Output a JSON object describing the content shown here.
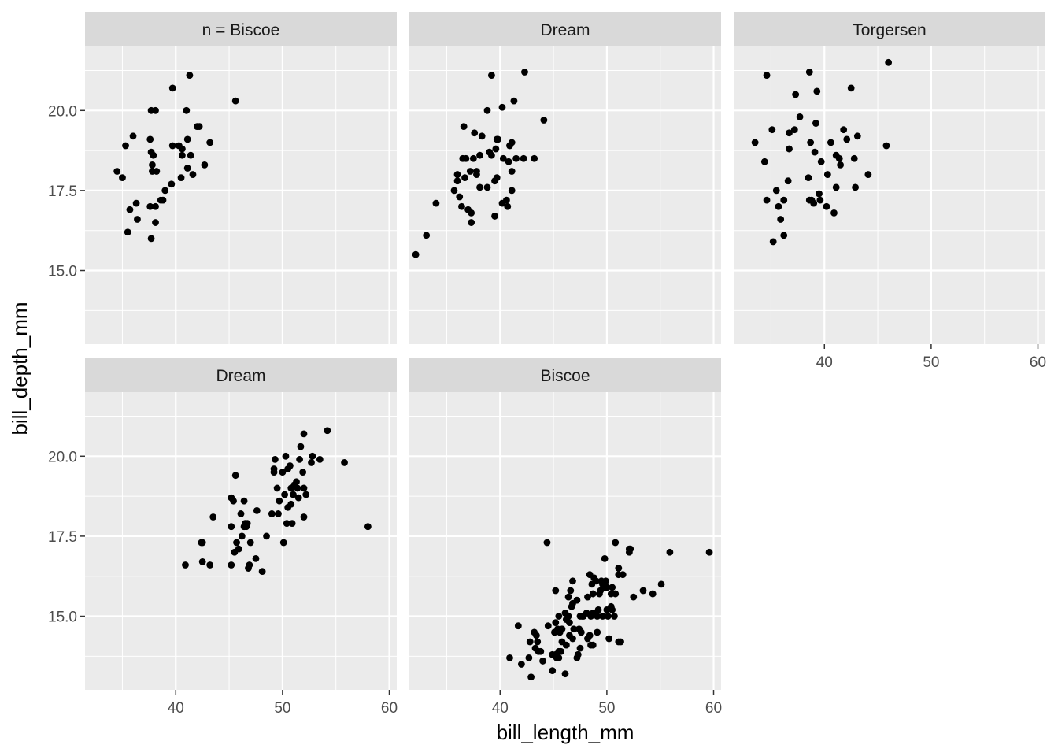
{
  "chart_data": {
    "type": "scatter",
    "facet_layout": "wrap",
    "xlabel": "bill_length_mm",
    "ylabel": "bill_depth_mm",
    "xlim": [
      31.5,
      60.7
    ],
    "ylim": [
      12.7,
      22.0
    ],
    "x_ticks": [
      40,
      50,
      60
    ],
    "x_tick_labels": [
      "40",
      "50",
      "60"
    ],
    "y_ticks": [
      15.0,
      17.5,
      20.0
    ],
    "y_tick_labels": [
      "15.0",
      "17.5",
      "20.0"
    ],
    "grid": true,
    "colors": {
      "panel": "#ebebeb",
      "strip": "#d9d9d9",
      "grid": "#ffffff",
      "point": "#000000"
    },
    "panels": [
      {
        "strip": "n = Biscoe",
        "points": [
          [
            34.5,
            18.1
          ],
          [
            35.0,
            17.9
          ],
          [
            35.3,
            18.9
          ],
          [
            35.5,
            16.2
          ],
          [
            35.7,
            16.9
          ],
          [
            36.0,
            19.2
          ],
          [
            36.3,
            17.1
          ],
          [
            36.4,
            16.6
          ],
          [
            37.6,
            19.1
          ],
          [
            37.7,
            16.0
          ],
          [
            37.7,
            18.7
          ],
          [
            37.6,
            17.0
          ],
          [
            37.7,
            20.0
          ],
          [
            37.8,
            18.1
          ],
          [
            37.8,
            18.3
          ],
          [
            37.9,
            18.6
          ],
          [
            38.1,
            17.0
          ],
          [
            38.1,
            20.0
          ],
          [
            38.2,
            18.1
          ],
          [
            38.1,
            16.5
          ],
          [
            38.6,
            17.2
          ],
          [
            38.8,
            17.2
          ],
          [
            39.0,
            17.5
          ],
          [
            39.6,
            17.7
          ],
          [
            39.7,
            18.9
          ],
          [
            39.7,
            20.7
          ],
          [
            40.3,
            18.9
          ],
          [
            40.5,
            17.9
          ],
          [
            40.6,
            18.6
          ],
          [
            40.6,
            18.8
          ],
          [
            41.0,
            20.0
          ],
          [
            41.1,
            18.2
          ],
          [
            41.1,
            19.1
          ],
          [
            41.3,
            21.1
          ],
          [
            41.4,
            18.6
          ],
          [
            41.6,
            18.0
          ],
          [
            42.0,
            19.5
          ],
          [
            42.2,
            19.5
          ],
          [
            42.7,
            18.3
          ],
          [
            43.2,
            19.0
          ],
          [
            45.6,
            20.3
          ]
        ]
      },
      {
        "strip": "Dream",
        "points": [
          [
            32.1,
            15.5
          ],
          [
            33.1,
            16.1
          ],
          [
            34.0,
            17.1
          ],
          [
            35.7,
            17.5
          ],
          [
            36.0,
            18.0
          ],
          [
            36.2,
            17.3
          ],
          [
            36.4,
            17.0
          ],
          [
            36.5,
            18.5
          ],
          [
            36.6,
            19.5
          ],
          [
            36.0,
            17.8
          ],
          [
            36.7,
            17.9
          ],
          [
            36.8,
            18.5
          ],
          [
            37.0,
            16.9
          ],
          [
            37.2,
            18.1
          ],
          [
            37.3,
            16.8
          ],
          [
            37.3,
            16.5
          ],
          [
            37.5,
            18.5
          ],
          [
            37.6,
            19.3
          ],
          [
            37.8,
            18.1
          ],
          [
            37.8,
            18.0
          ],
          [
            38.1,
            17.6
          ],
          [
            38.3,
            19.2
          ],
          [
            38.1,
            18.6
          ],
          [
            38.8,
            20.0
          ],
          [
            38.8,
            17.6
          ],
          [
            39.0,
            18.7
          ],
          [
            39.2,
            21.1
          ],
          [
            39.2,
            18.6
          ],
          [
            39.5,
            17.8
          ],
          [
            39.5,
            16.7
          ],
          [
            39.6,
            18.8
          ],
          [
            39.7,
            17.9
          ],
          [
            39.7,
            19.1
          ],
          [
            39.8,
            19.1
          ],
          [
            40.2,
            20.1
          ],
          [
            40.2,
            17.1
          ],
          [
            40.3,
            18.5
          ],
          [
            40.6,
            17.2
          ],
          [
            40.7,
            17.0
          ],
          [
            40.8,
            18.4
          ],
          [
            40.9,
            18.9
          ],
          [
            41.1,
            17.5
          ],
          [
            41.1,
            18.1
          ],
          [
            41.1,
            19.0
          ],
          [
            41.5,
            18.5
          ],
          [
            42.2,
            18.5
          ],
          [
            41.3,
            20.3
          ],
          [
            42.3,
            21.2
          ],
          [
            43.2,
            18.5
          ],
          [
            44.1,
            19.7
          ]
        ]
      },
      {
        "strip": "Torgersen",
        "points": [
          [
            33.5,
            19.0
          ],
          [
            34.4,
            18.4
          ],
          [
            34.6,
            21.1
          ],
          [
            34.6,
            17.2
          ],
          [
            35.1,
            19.4
          ],
          [
            35.2,
            15.9
          ],
          [
            35.5,
            17.5
          ],
          [
            35.7,
            17.0
          ],
          [
            35.9,
            16.6
          ],
          [
            36.2,
            17.2
          ],
          [
            36.2,
            16.1
          ],
          [
            36.6,
            17.8
          ],
          [
            36.7,
            19.3
          ],
          [
            36.7,
            18.8
          ],
          [
            37.2,
            19.4
          ],
          [
            37.3,
            20.5
          ],
          [
            37.7,
            19.8
          ],
          [
            38.5,
            17.9
          ],
          [
            38.6,
            17.2
          ],
          [
            38.6,
            21.2
          ],
          [
            38.7,
            19.0
          ],
          [
            38.8,
            17.2
          ],
          [
            39.0,
            17.1
          ],
          [
            39.1,
            18.7
          ],
          [
            39.2,
            19.6
          ],
          [
            39.3,
            20.6
          ],
          [
            39.5,
            17.4
          ],
          [
            39.6,
            17.2
          ],
          [
            39.7,
            18.4
          ],
          [
            40.2,
            17.0
          ],
          [
            40.3,
            18.0
          ],
          [
            40.6,
            19.0
          ],
          [
            40.9,
            16.8
          ],
          [
            41.1,
            17.6
          ],
          [
            41.1,
            18.6
          ],
          [
            41.4,
            18.5
          ],
          [
            41.5,
            18.3
          ],
          [
            41.8,
            19.4
          ],
          [
            42.1,
            19.1
          ],
          [
            42.5,
            20.7
          ],
          [
            42.8,
            18.5
          ],
          [
            42.9,
            17.6
          ],
          [
            43.1,
            19.2
          ],
          [
            44.1,
            18.0
          ],
          [
            45.8,
            18.9
          ],
          [
            46.0,
            21.5
          ]
        ]
      },
      {
        "strip": "Dream",
        "points": [
          [
            40.9,
            16.6
          ],
          [
            42.4,
            17.3
          ],
          [
            42.5,
            17.3
          ],
          [
            42.5,
            16.7
          ],
          [
            43.2,
            16.6
          ],
          [
            43.5,
            18.1
          ],
          [
            45.2,
            17.8
          ],
          [
            45.2,
            16.6
          ],
          [
            45.2,
            18.7
          ],
          [
            45.4,
            18.6
          ],
          [
            45.5,
            17.0
          ],
          [
            45.6,
            19.4
          ],
          [
            45.7,
            17.3
          ],
          [
            45.9,
            17.1
          ],
          [
            46.1,
            18.2
          ],
          [
            46.2,
            17.5
          ],
          [
            46.4,
            17.8
          ],
          [
            46.4,
            18.6
          ],
          [
            46.5,
            17.9
          ],
          [
            46.6,
            17.8
          ],
          [
            46.7,
            17.9
          ],
          [
            46.8,
            16.5
          ],
          [
            46.9,
            16.6
          ],
          [
            47.0,
            17.3
          ],
          [
            47.5,
            16.8
          ],
          [
            47.6,
            18.3
          ],
          [
            48.1,
            16.4
          ],
          [
            48.5,
            17.5
          ],
          [
            49.0,
            18.2
          ],
          [
            49.2,
            19.6
          ],
          [
            49.3,
            19.9
          ],
          [
            49.2,
            19.5
          ],
          [
            49.5,
            19.0
          ],
          [
            49.6,
            18.2
          ],
          [
            49.7,
            18.6
          ],
          [
            50.0,
            19.5
          ],
          [
            50.1,
            17.3
          ],
          [
            50.2,
            18.8
          ],
          [
            50.3,
            20.0
          ],
          [
            50.4,
            17.9
          ],
          [
            50.5,
            19.6
          ],
          [
            50.5,
            18.4
          ],
          [
            50.7,
            19.7
          ],
          [
            50.8,
            18.5
          ],
          [
            50.8,
            19.0
          ],
          [
            50.9,
            17.9
          ],
          [
            51.0,
            18.8
          ],
          [
            51.1,
            19.1
          ],
          [
            51.3,
            19.2
          ],
          [
            51.4,
            19.0
          ],
          [
            51.5,
            18.7
          ],
          [
            51.6,
            19.9
          ],
          [
            51.7,
            20.3
          ],
          [
            51.9,
            19.5
          ],
          [
            52.0,
            18.1
          ],
          [
            52.0,
            19.0
          ],
          [
            52.0,
            20.7
          ],
          [
            52.2,
            18.8
          ],
          [
            52.7,
            19.8
          ],
          [
            52.8,
            20.0
          ],
          [
            53.5,
            19.9
          ],
          [
            54.2,
            20.8
          ],
          [
            55.8,
            19.8
          ],
          [
            58.0,
            17.8
          ]
        ]
      },
      {
        "strip": "Biscoe",
        "points": [
          [
            40.9,
            13.7
          ],
          [
            41.7,
            14.7
          ],
          [
            42.0,
            13.5
          ],
          [
            42.7,
            13.7
          ],
          [
            42.8,
            14.2
          ],
          [
            42.9,
            13.1
          ],
          [
            43.2,
            14.5
          ],
          [
            43.3,
            14.0
          ],
          [
            43.4,
            14.4
          ],
          [
            43.5,
            14.2
          ],
          [
            43.6,
            13.9
          ],
          [
            43.8,
            13.9
          ],
          [
            44.0,
            13.6
          ],
          [
            44.4,
            17.3
          ],
          [
            44.5,
            14.7
          ],
          [
            44.9,
            13.8
          ],
          [
            44.9,
            13.3
          ],
          [
            45.1,
            14.5
          ],
          [
            45.2,
            13.8
          ],
          [
            45.2,
            14.8
          ],
          [
            45.2,
            15.8
          ],
          [
            45.3,
            13.7
          ],
          [
            45.3,
            13.8
          ],
          [
            45.4,
            14.6
          ],
          [
            45.5,
            13.7
          ],
          [
            45.5,
            13.9
          ],
          [
            45.5,
            15.0
          ],
          [
            45.6,
            14.5
          ],
          [
            45.7,
            13.9
          ],
          [
            45.8,
            14.2
          ],
          [
            45.8,
            14.6
          ],
          [
            46.1,
            13.2
          ],
          [
            46.1,
            15.1
          ],
          [
            46.2,
            14.1
          ],
          [
            46.2,
            14.9
          ],
          [
            46.4,
            15.0
          ],
          [
            46.4,
            15.6
          ],
          [
            46.5,
            14.4
          ],
          [
            46.5,
            14.8
          ],
          [
            46.6,
            15.8
          ],
          [
            46.7,
            15.3
          ],
          [
            46.8,
            14.3
          ],
          [
            46.8,
            15.4
          ],
          [
            46.8,
            16.1
          ],
          [
            46.9,
            14.6
          ],
          [
            47.2,
            13.7
          ],
          [
            47.2,
            15.5
          ],
          [
            47.3,
            13.8
          ],
          [
            47.4,
            14.6
          ],
          [
            47.5,
            14.0
          ],
          [
            47.5,
            15.0
          ],
          [
            47.6,
            14.5
          ],
          [
            47.7,
            15.0
          ],
          [
            47.8,
            15.0
          ],
          [
            48.1,
            15.1
          ],
          [
            48.2,
            14.3
          ],
          [
            48.2,
            15.6
          ],
          [
            48.4,
            14.4
          ],
          [
            48.4,
            16.3
          ],
          [
            48.5,
            14.1
          ],
          [
            48.5,
            15.0
          ],
          [
            48.6,
            16.0
          ],
          [
            48.7,
            14.1
          ],
          [
            48.7,
            15.1
          ],
          [
            48.7,
            15.7
          ],
          [
            48.8,
            16.2
          ],
          [
            49.0,
            16.1
          ],
          [
            49.1,
            14.5
          ],
          [
            49.1,
            15.0
          ],
          [
            49.2,
            15.2
          ],
          [
            49.3,
            15.7
          ],
          [
            49.4,
            15.8
          ],
          [
            49.5,
            16.1
          ],
          [
            49.6,
            15.0
          ],
          [
            49.6,
            16.0
          ],
          [
            49.8,
            15.9
          ],
          [
            49.8,
            16.8
          ],
          [
            49.9,
            16.1
          ],
          [
            50.0,
            15.2
          ],
          [
            50.0,
            15.9
          ],
          [
            50.1,
            15.0
          ],
          [
            50.2,
            14.3
          ],
          [
            50.4,
            15.3
          ],
          [
            50.4,
            15.7
          ],
          [
            50.5,
            15.2
          ],
          [
            50.5,
            15.9
          ],
          [
            50.7,
            15.0
          ],
          [
            50.8,
            15.7
          ],
          [
            50.8,
            17.3
          ],
          [
            51.1,
            14.2
          ],
          [
            51.1,
            16.3
          ],
          [
            51.1,
            16.5
          ],
          [
            51.3,
            14.2
          ],
          [
            51.5,
            16.3
          ],
          [
            52.1,
            17.0
          ],
          [
            52.1,
            17.1
          ],
          [
            52.2,
            17.1
          ],
          [
            52.5,
            15.6
          ],
          [
            53.4,
            15.8
          ],
          [
            54.3,
            15.7
          ],
          [
            55.1,
            16.0
          ],
          [
            55.9,
            17.0
          ],
          [
            59.6,
            17.0
          ]
        ]
      }
    ]
  }
}
